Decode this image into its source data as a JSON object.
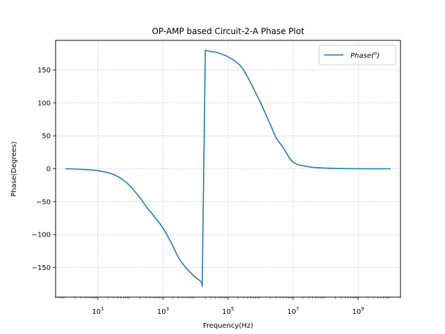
{
  "chart_data": {
    "type": "line",
    "title": "OP-AMP based Circuit-2-A Phase Plot",
    "xlabel": "Frequency(Hz)",
    "ylabel": "Phase(Degrees)",
    "xscale": "log",
    "xlim": [
      0.5,
      20000000000
    ],
    "ylim": [
      -195,
      195
    ],
    "grid": true,
    "legend_position": "top-right",
    "x_ticks": [
      {
        "value": 10,
        "base": "10",
        "exp": "1"
      },
      {
        "value": 1000,
        "base": "10",
        "exp": "3"
      },
      {
        "value": 100000,
        "base": "10",
        "exp": "5"
      },
      {
        "value": 10000000,
        "base": "10",
        "exp": "7"
      },
      {
        "value": 1000000000,
        "base": "10",
        "exp": "9"
      }
    ],
    "y_ticks": [
      {
        "value": -150,
        "label": "−150"
      },
      {
        "value": -100,
        "label": "−100"
      },
      {
        "value": -50,
        "label": "−50"
      },
      {
        "value": 0,
        "label": "0"
      },
      {
        "value": 50,
        "label": "50"
      },
      {
        "value": 100,
        "label": "100"
      },
      {
        "value": 150,
        "label": "150"
      }
    ],
    "series": [
      {
        "name": "Phase(o)",
        "legend_main": "Phase(",
        "legend_sup": "o",
        "legend_end": ")",
        "color": "#1f77b4",
        "x": [
          1,
          3,
          10,
          30,
          60,
          100,
          200,
          300,
          500,
          1000,
          2000,
          3000,
          5000,
          10000,
          15000,
          16000,
          20000,
          30000,
          50000,
          100000,
          200000,
          300000,
          500000,
          1000000,
          2000000,
          3000000,
          5000000,
          10000000,
          30000000,
          100000000,
          1000000000,
          10000000000
        ],
        "y": [
          0,
          -0.9,
          -3,
          -8.7,
          -17.2,
          -27,
          -44.8,
          -57,
          -70.5,
          -90,
          -117,
          -135,
          -150,
          -165,
          -172,
          -179,
          180,
          178,
          176,
          170,
          160,
          150,
          130,
          100,
          67,
          47,
          32,
          10,
          3,
          1,
          0,
          0
        ]
      }
    ]
  }
}
